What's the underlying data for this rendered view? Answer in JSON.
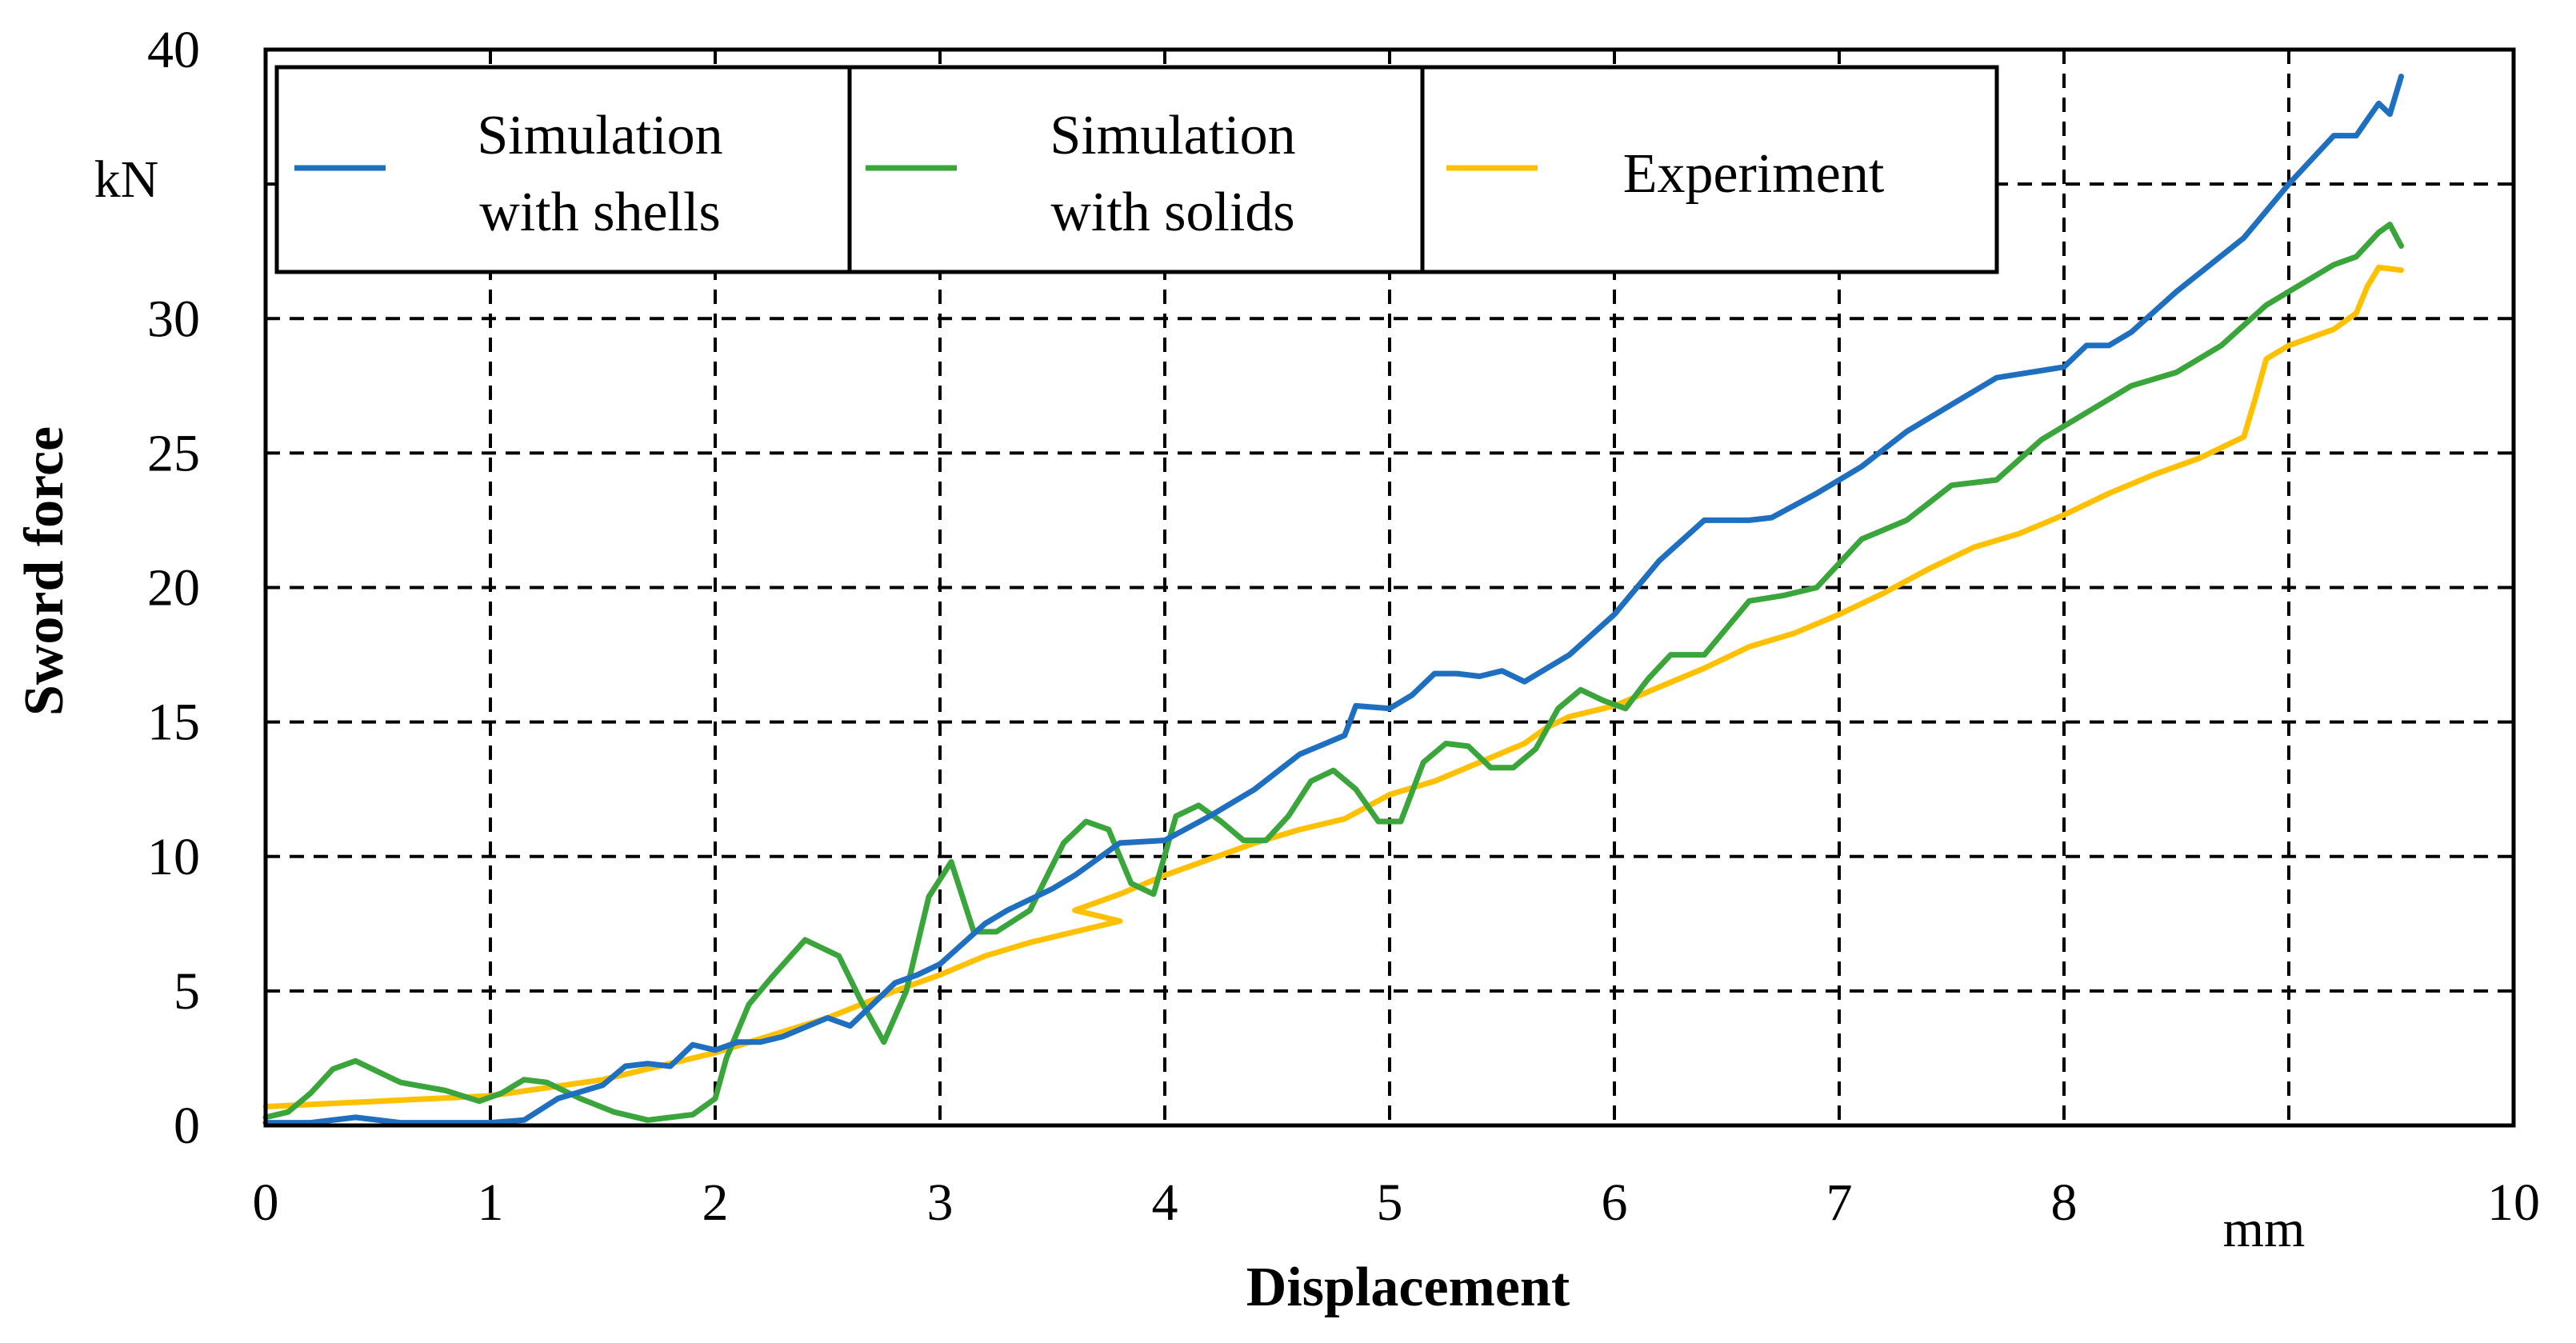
{
  "chart_data": {
    "type": "line",
    "xlabel": "Displacement",
    "ylabel": "Sword force",
    "x_unit": "mm",
    "y_unit": "kN",
    "xlim": [
      0,
      10
    ],
    "ylim": [
      0,
      40
    ],
    "x_ticks": [
      "0",
      "1",
      "2",
      "3",
      "4",
      "5",
      "6",
      "7",
      "8",
      "10"
    ],
    "x_tick_values": [
      0,
      1,
      2,
      3,
      4,
      5,
      6,
      7,
      8,
      10
    ],
    "y_ticks": [
      "0",
      "5",
      "10",
      "15",
      "20",
      "25",
      "30",
      "40"
    ],
    "y_tick_values": [
      0,
      5,
      10,
      15,
      20,
      25,
      30,
      40
    ],
    "grid_x": [
      1,
      2,
      3,
      4,
      5,
      6,
      7,
      8,
      9
    ],
    "grid_y": [
      5,
      10,
      15,
      20,
      25,
      30,
      35
    ],
    "legend_position": "top",
    "series": [
      {
        "name": "Simulation with shells",
        "label_lines": [
          "Simulation",
          "with shells"
        ],
        "color": "#1f6fc1",
        "x": [
          0,
          0.2,
          0.4,
          0.6,
          0.8,
          1.0,
          1.15,
          1.3,
          1.5,
          1.6,
          1.7,
          1.8,
          1.9,
          2.0,
          2.1,
          2.2,
          2.3,
          2.5,
          2.6,
          2.7,
          2.8,
          2.9,
          3.0,
          3.2,
          3.3,
          3.5,
          3.6,
          3.8,
          4.0,
          4.2,
          4.4,
          4.6,
          4.8,
          4.85,
          5.0,
          5.1,
          5.2,
          5.3,
          5.4,
          5.5,
          5.6,
          5.8,
          6.0,
          6.2,
          6.4,
          6.6,
          6.7,
          6.9,
          7.1,
          7.3,
          7.5,
          7.7,
          8.0,
          8.1,
          8.2,
          8.3,
          8.5,
          8.8,
          9.0,
          9.2,
          9.3,
          9.35,
          9.4,
          9.45,
          9.5
        ],
        "values": [
          0.1,
          0.1,
          0.3,
          0.1,
          0.1,
          0.1,
          0.2,
          1.0,
          1.5,
          2.2,
          2.3,
          2.2,
          3.0,
          2.8,
          3.1,
          3.1,
          3.3,
          4.0,
          3.7,
          4.5,
          5.3,
          5.6,
          6.0,
          7.5,
          8.0,
          8.8,
          9.3,
          10.5,
          10.6,
          11.5,
          12.5,
          13.8,
          14.5,
          15.6,
          15.5,
          16.0,
          16.8,
          16.8,
          16.7,
          16.9,
          16.5,
          17.5,
          19.0,
          21.0,
          22.5,
          22.5,
          22.6,
          23.5,
          24.5,
          25.8,
          26.8,
          27.8,
          28.2,
          29.0,
          29.0,
          29.5,
          31.0,
          33.0,
          35.0,
          36.8,
          36.8,
          37.4,
          38.0,
          37.6,
          39.0
        ]
      },
      {
        "name": "Simulation with solids",
        "label_lines": [
          "Simulation",
          "with solids"
        ],
        "color": "#3aa53a",
        "x": [
          0,
          0.1,
          0.2,
          0.3,
          0.4,
          0.5,
          0.6,
          0.8,
          0.95,
          1.05,
          1.15,
          1.25,
          1.4,
          1.55,
          1.7,
          1.9,
          2.0,
          2.05,
          2.15,
          2.25,
          2.4,
          2.55,
          2.65,
          2.75,
          2.85,
          2.95,
          3.05,
          3.15,
          3.25,
          3.4,
          3.55,
          3.65,
          3.75,
          3.85,
          3.95,
          4.05,
          4.15,
          4.25,
          4.35,
          4.45,
          4.55,
          4.65,
          4.75,
          4.85,
          4.95,
          5.05,
          5.15,
          5.25,
          5.35,
          5.45,
          5.55,
          5.65,
          5.75,
          5.85,
          5.95,
          6.05,
          6.15,
          6.25,
          6.4,
          6.6,
          6.75,
          6.9,
          7.1,
          7.3,
          7.5,
          7.7,
          7.9,
          8.1,
          8.3,
          8.5,
          8.7,
          8.9,
          9.1,
          9.2,
          9.3,
          9.4,
          9.45,
          9.5
        ],
        "values": [
          0.3,
          0.5,
          1.2,
          2.1,
          2.4,
          2.0,
          1.6,
          1.3,
          0.9,
          1.2,
          1.7,
          1.6,
          1.0,
          0.5,
          0.2,
          0.4,
          1.0,
          2.5,
          4.5,
          5.5,
          6.9,
          6.3,
          4.6,
          3.1,
          5.0,
          8.5,
          9.8,
          7.2,
          7.2,
          8.0,
          10.5,
          11.3,
          11.0,
          9.0,
          8.6,
          11.5,
          11.9,
          11.3,
          10.6,
          10.6,
          11.5,
          12.8,
          13.2,
          12.5,
          11.3,
          11.3,
          13.5,
          14.2,
          14.1,
          13.3,
          13.3,
          14.0,
          15.5,
          16.2,
          15.8,
          15.5,
          16.6,
          17.5,
          17.5,
          19.5,
          19.7,
          20.0,
          21.8,
          22.5,
          23.8,
          24.0,
          25.5,
          26.5,
          27.5,
          28.0,
          29.0,
          30.5,
          31.5,
          32.0,
          32.3,
          33.2,
          33.5,
          32.7
        ]
      },
      {
        "name": "Experiment",
        "label_lines": [
          "Experiment"
        ],
        "color": "#ffc000",
        "x": [
          0,
          0.5,
          1.0,
          1.5,
          2.0,
          2.5,
          2.8,
          3.0,
          3.2,
          3.4,
          3.6,
          3.8,
          3.6,
          3.8,
          4.0,
          4.2,
          4.4,
          4.6,
          4.8,
          5.0,
          5.2,
          5.4,
          5.6,
          5.7,
          5.8,
          6.0,
          6.2,
          6.4,
          6.6,
          6.8,
          7.0,
          7.2,
          7.4,
          7.6,
          7.8,
          8.0,
          8.2,
          8.4,
          8.6,
          8.8,
          8.85,
          8.9,
          9.0,
          9.2,
          9.3,
          9.35,
          9.4,
          9.5
        ],
        "values": [
          0.7,
          0.9,
          1.1,
          1.7,
          2.7,
          4.0,
          5.0,
          5.6,
          6.3,
          6.8,
          7.2,
          7.6,
          8.0,
          8.6,
          9.3,
          9.9,
          10.5,
          11.0,
          11.4,
          12.3,
          12.8,
          13.5,
          14.2,
          14.8,
          15.2,
          15.6,
          16.3,
          17.0,
          17.8,
          18.3,
          19.0,
          19.8,
          20.7,
          21.5,
          22.0,
          22.7,
          23.5,
          24.2,
          24.8,
          25.6,
          27.0,
          28.5,
          29.0,
          29.6,
          30.2,
          31.2,
          31.9,
          31.8
        ]
      }
    ]
  }
}
